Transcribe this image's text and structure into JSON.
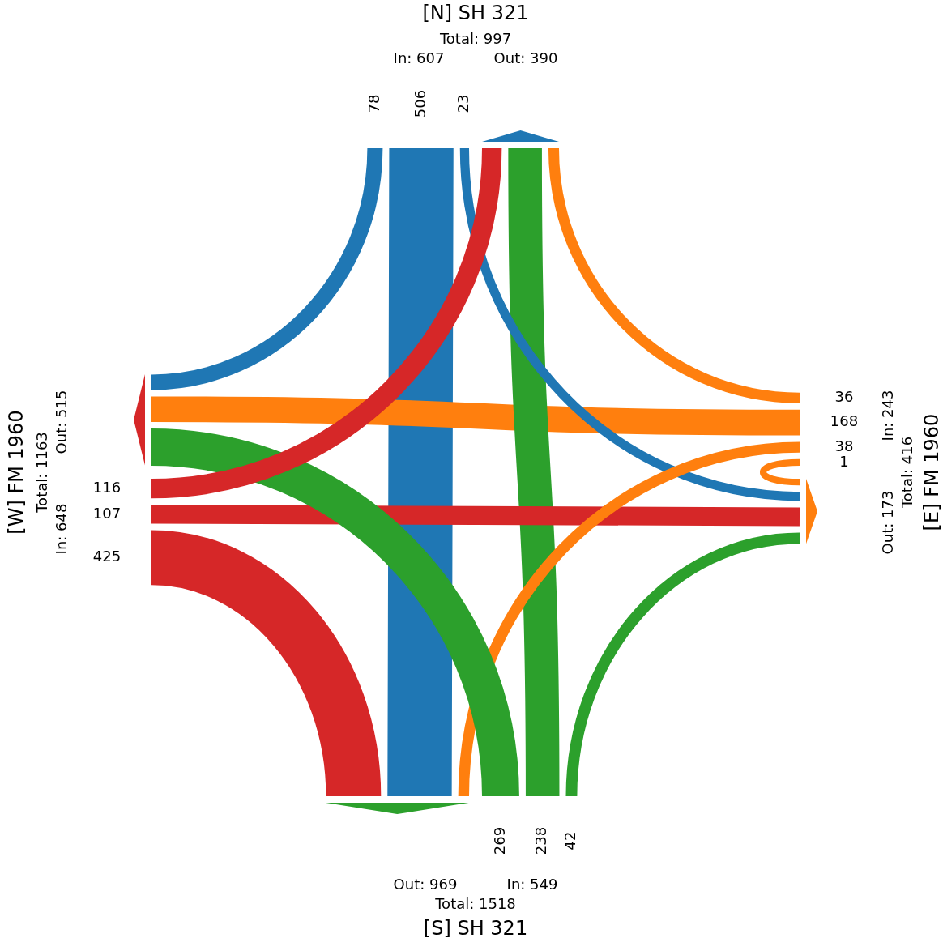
{
  "chart_data": {
    "type": "other",
    "categories": [
      "[N] SH 321",
      "[E] FM 1960",
      "[S] SH 321",
      "[W] FM 1960"
    ],
    "series": [
      {
        "colors": [
          "#1f77b4",
          "#ff7f0e",
          "#2ca02c",
          "#d62728"
        ],
        "values": [
          null,
          36,
          238,
          116
        ]
      },
      {
        "colors": [
          "#1f77b4",
          "#ff7f0e",
          "#2ca02c",
          "#d62728"
        ],
        "values": [
          23,
          1,
          42,
          107
        ]
      },
      {
        "colors": [
          "#1f77b4",
          "#ff7f0e",
          "#2ca02c",
          "#d62728"
        ],
        "values": [
          506,
          38,
          null,
          425
        ]
      },
      {
        "colors": [
          "#1f77b4",
          "#ff7f0e",
          "#2ca02c",
          "#d62728"
        ],
        "values": [
          78,
          168,
          269,
          null
        ]
      }
    ],
    "data_labels": true,
    "annotations": [
      "Total: 997",
      "In: 607",
      "Out: 390",
      "Total: 416",
      "In: 243",
      "Out: 173",
      "Total: 1518",
      "In: 549",
      "Out: 969",
      "Total: 1163",
      "In: 648",
      "Out: 515"
    ]
  }
}
